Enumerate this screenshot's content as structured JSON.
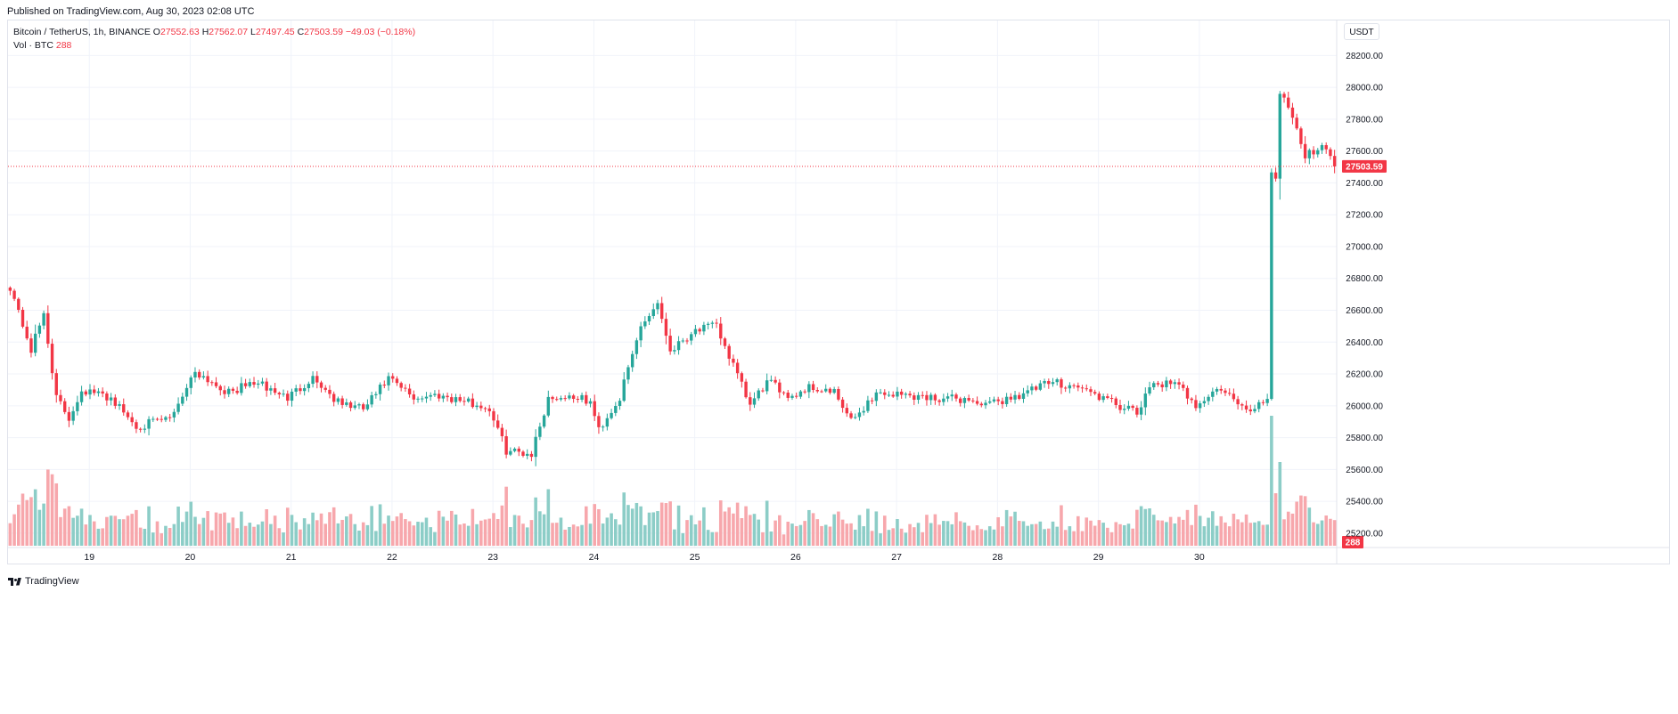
{
  "header": {
    "published": "Published on TradingView.com, Aug 30, 2023 02:08 UTC"
  },
  "legend": {
    "symbol": "Bitcoin / TetherUS, 1h, BINANCE",
    "ohlc": [
      {
        "label": "O",
        "value": "27552.63"
      },
      {
        "label": "H",
        "value": "27562.07"
      },
      {
        "label": "L",
        "value": "27497.45"
      },
      {
        "label": "C",
        "value": "27503.59"
      }
    ],
    "change": "−49.03 (−0.18%)",
    "volume_label": "Vol · BTC",
    "volume_value": "288"
  },
  "currency_button": "USDT",
  "footer": {
    "brand": "TradingView"
  },
  "colors": {
    "up": "#26a69a",
    "down": "#f23645",
    "vol_up": "#8ccdc7",
    "vol_down": "#f7a7ac",
    "grid": "#f0f3fa"
  },
  "chart_data": {
    "type": "candlestick",
    "interval": "1h",
    "x_ticks": [
      "19",
      "20",
      "21",
      "22",
      "23",
      "24",
      "25",
      "26",
      "27",
      "28",
      "29",
      "30"
    ],
    "y_ticks": [
      "28200.00",
      "28000.00",
      "27800.00",
      "27600.00",
      "27400.00",
      "27200.00",
      "27000.00",
      "26800.00",
      "26600.00",
      "26400.00",
      "26200.00",
      "26000.00",
      "25800.00",
      "25600.00",
      "25400.00",
      "25200.00"
    ],
    "ylim": [
      25110,
      28420
    ],
    "last_price": {
      "value": 27503.59,
      "label": "27503.59"
    },
    "last_volume": {
      "value": 288,
      "label": "288"
    },
    "anchors": [
      [
        0,
        26750
      ],
      [
        5,
        26350
      ],
      [
        8,
        26580
      ],
      [
        11,
        26050
      ],
      [
        14,
        25920
      ],
      [
        17,
        26100
      ],
      [
        24,
        26050
      ],
      [
        30,
        25870
      ],
      [
        38,
        25920
      ],
      [
        44,
        26220
      ],
      [
        52,
        26080
      ],
      [
        58,
        26150
      ],
      [
        66,
        26050
      ],
      [
        72,
        26180
      ],
      [
        78,
        26020
      ],
      [
        84,
        25980
      ],
      [
        90,
        26170
      ],
      [
        96,
        26050
      ],
      [
        102,
        26070
      ],
      [
        108,
        26030
      ],
      [
        114,
        25980
      ],
      [
        118,
        25720
      ],
      [
        124,
        25700
      ],
      [
        128,
        26050
      ],
      [
        134,
        26060
      ],
      [
        138,
        26020
      ],
      [
        140,
        25850
      ],
      [
        145,
        26050
      ],
      [
        150,
        26500
      ],
      [
        154,
        26650
      ],
      [
        157,
        26350
      ],
      [
        163,
        26480
      ],
      [
        168,
        26500
      ],
      [
        172,
        26250
      ],
      [
        176,
        26000
      ],
      [
        180,
        26150
      ],
      [
        186,
        26060
      ],
      [
        190,
        26120
      ],
      [
        196,
        26080
      ],
      [
        200,
        25900
      ],
      [
        206,
        26080
      ],
      [
        212,
        26070
      ],
      [
        220,
        26050
      ],
      [
        228,
        26040
      ],
      [
        232,
        26000
      ],
      [
        240,
        26070
      ],
      [
        248,
        26150
      ],
      [
        254,
        26120
      ],
      [
        262,
        26020
      ],
      [
        268,
        25950
      ],
      [
        272,
        26150
      ],
      [
        278,
        26120
      ],
      [
        282,
        26010
      ],
      [
        288,
        26110
      ],
      [
        294,
        25960
      ],
      [
        299,
        26050
      ],
      [
        300,
        27480
      ],
      [
        301,
        27420
      ],
      [
        302,
        27980
      ],
      [
        305,
        27830
      ],
      [
        308,
        27560
      ],
      [
        312,
        27650
      ],
      [
        315,
        27500
      ]
    ]
  }
}
